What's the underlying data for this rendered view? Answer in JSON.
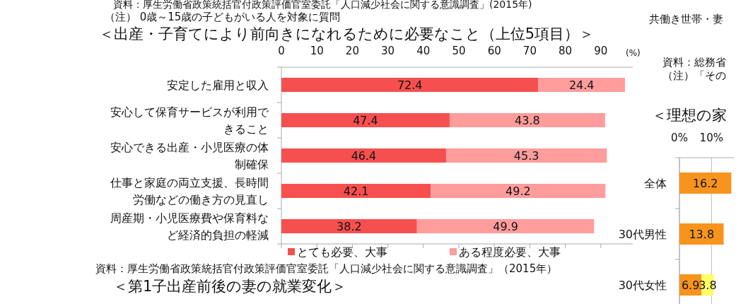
{
  "chart_data": [
    {
      "type": "bar",
      "orientation": "horizontal",
      "stacked": true,
      "title": "＜出産・子育てにより前向きになれるために必要なこと（上位5項目）＞",
      "xlabel": "(%)",
      "categories": [
        "安定した雇用と収入",
        "安心して保育サービスが利用できること",
        "安心できる出産・小児医療の体制確保",
        "仕事と家庭の両立支援、長時間労働などの働き方の見直し",
        "周産期・小児医療費や保育料など経済的負担の軽減"
      ],
      "series": [
        {
          "name": "とても必要、大事",
          "color": "#f5504f",
          "values": [
            72.4,
            47.4,
            46.4,
            42.1,
            38.2
          ]
        },
        {
          "name": "ある程度必要、大事",
          "color": "#ff9c9c",
          "values": [
            24.4,
            43.8,
            45.3,
            49.2,
            49.9
          ]
        }
      ],
      "xlim": [
        0,
        99
      ],
      "xticks": [
        0,
        10,
        20,
        30,
        40,
        50,
        60,
        70,
        80,
        90
      ],
      "data_labels": true,
      "legend": "bottom",
      "grid": false,
      "annotations": [
        "資料：厚生労働省政策統括官付政策評価官室委託「人口減少社会に関する意識調査」(2015年)",
        "（注） 0歳～15歳の子どもがいる人を対象に質問",
        "資料：厚生労働省政策統括官付政策評価官室委託「人口減少社会に関する意識調査」（2015年）"
      ]
    },
    {
      "type": "bar",
      "orientation": "horizontal",
      "stacked": true,
      "title": "＜理想の家",
      "categories": [
        "全体",
        "30代男性",
        "30代女性"
      ],
      "series": [
        {
          "color": "#f7941d",
          "values": [
            16.2,
            13.8,
            6.9
          ]
        },
        {
          "color": "#ffff66",
          "values": [
            null,
            null,
            3.8
          ]
        }
      ],
      "xlim": [
        0,
        17
      ],
      "xticks": [
        {
          "value": 0,
          "label": "0%"
        },
        {
          "value": 10,
          "label": "10%"
        }
      ],
      "data_labels": true,
      "grid": "x",
      "annotations": [
        "共働き世帯・妻",
        "資料：総務省",
        "（注）「その"
      ]
    },
    {
      "type": "other",
      "title": "＜第1子出産前後の妻の就業変化＞"
    }
  ]
}
